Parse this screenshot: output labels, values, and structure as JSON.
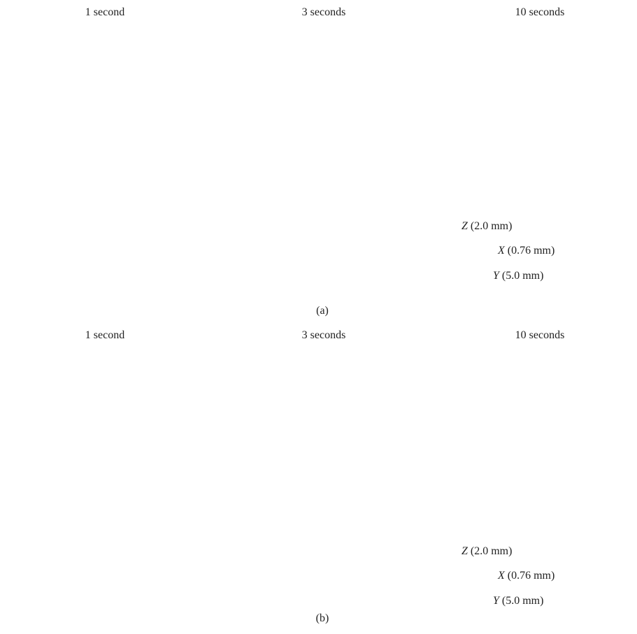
{
  "panels": [
    {
      "label": "(a)",
      "columns": [
        "1 second",
        "3 seconds",
        "10 seconds"
      ],
      "axes": [
        {
          "letter": "Z",
          "size": "(2.0 mm)"
        },
        {
          "letter": "X",
          "size": "(0.76 mm)"
        },
        {
          "letter": "Y",
          "size": "(5.0 mm)"
        }
      ]
    },
    {
      "label": "(b)",
      "columns": [
        "1 second",
        "3 seconds",
        "10 seconds"
      ],
      "axes": [
        {
          "letter": "Z",
          "size": "(2.0 mm)"
        },
        {
          "letter": "X",
          "size": "(0.76 mm)"
        },
        {
          "letter": "Y",
          "size": "(5.0 mm)"
        }
      ]
    }
  ]
}
